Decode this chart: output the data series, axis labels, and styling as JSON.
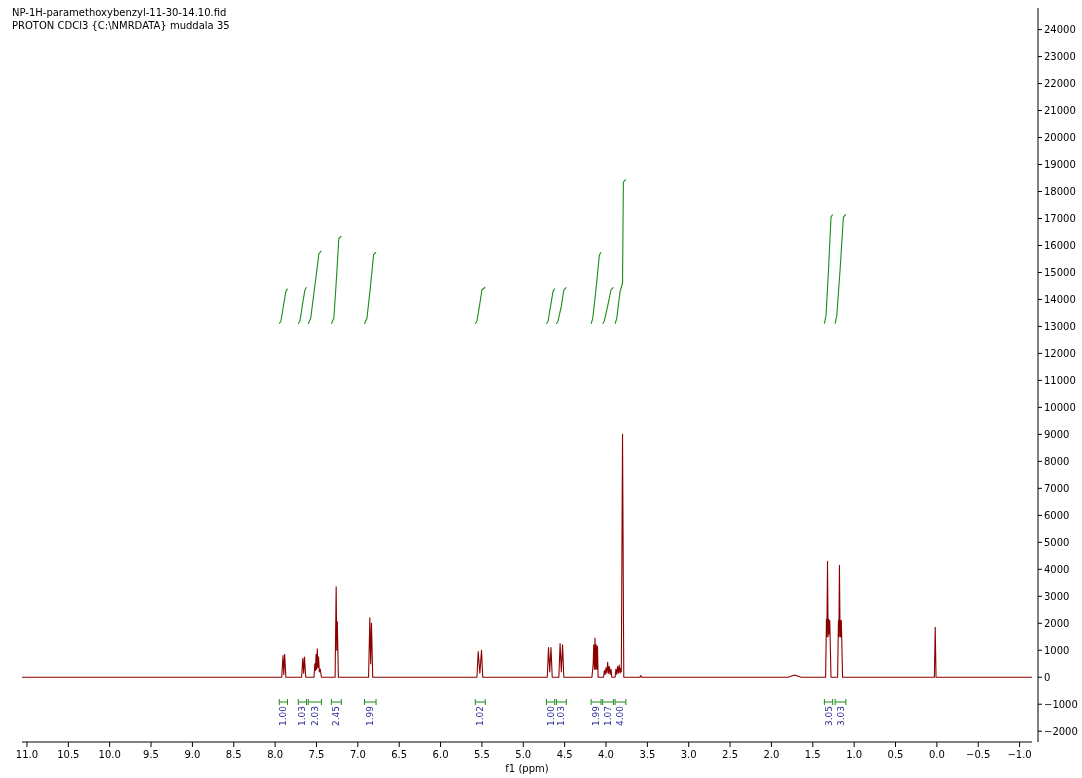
{
  "chart_data": {
    "type": "line",
    "title": "NP-1H-paramethoxybenzyl-11-30-14.10.fid",
    "subtitle": "PROTON CDCl3 {C:\\NMRDATA} muddala 35",
    "xlabel": "f1 (ppm)",
    "xlim": [
      11.06,
      -1.15
    ],
    "ylim": [
      -2400,
      24800
    ],
    "xticks": [
      {
        "value": 11,
        "label": "11.0"
      },
      {
        "value": 10.5,
        "label": "10.5"
      },
      {
        "value": 10,
        "label": "10.0"
      },
      {
        "value": 9.5,
        "label": "9.5"
      },
      {
        "value": 9,
        "label": "9.0"
      },
      {
        "value": 8.5,
        "label": "8.5"
      },
      {
        "value": 8,
        "label": "8.0"
      },
      {
        "value": 7.5,
        "label": "7.5"
      },
      {
        "value": 7,
        "label": "7.0"
      },
      {
        "value": 6.5,
        "label": "6.5"
      },
      {
        "value": 6,
        "label": "6.0"
      },
      {
        "value": 5.5,
        "label": "5.5"
      },
      {
        "value": 5,
        "label": "5.0"
      },
      {
        "value": 4.5,
        "label": "4.5"
      },
      {
        "value": 4,
        "label": "4.0"
      },
      {
        "value": 3.5,
        "label": "3.5"
      },
      {
        "value": 3,
        "label": "3.0"
      },
      {
        "value": 2.5,
        "label": "2.5"
      },
      {
        "value": 2,
        "label": "2.0"
      },
      {
        "value": 1.5,
        "label": "1.5"
      },
      {
        "value": 1,
        "label": "1.0"
      },
      {
        "value": 0.5,
        "label": "0.5"
      },
      {
        "value": 0,
        "label": "0.0"
      },
      {
        "value": -0.5,
        "label": "−0.5"
      },
      {
        "value": -1,
        "label": "−1.0"
      }
    ],
    "yticks": [
      {
        "value": -2000,
        "label": "−2000"
      },
      {
        "value": -1000,
        "label": "−1000"
      },
      0,
      1000,
      2000,
      3000,
      4000,
      5000,
      6000,
      7000,
      8000,
      9000,
      10000,
      11000,
      12000,
      13000,
      14000,
      15000,
      16000,
      17000,
      18000,
      19000,
      20000,
      21000,
      22000,
      23000,
      24000
    ],
    "grid": false,
    "marker": "none",
    "series": [
      {
        "color": "#8b0000",
        "x": [
          11.06,
          7.92,
          7.905,
          7.895,
          7.885,
          7.87,
          7.68,
          7.665,
          7.655,
          7.645,
          7.63,
          7.53,
          7.52,
          7.512,
          7.505,
          7.498,
          7.49,
          7.482,
          7.475,
          7.465,
          7.455,
          7.44,
          7.275,
          7.262,
          7.255,
          7.248,
          7.235,
          6.87,
          6.855,
          6.845,
          6.835,
          6.82,
          5.56,
          5.545,
          5.525,
          5.505,
          5.49,
          4.71,
          4.695,
          4.68,
          4.665,
          4.65,
          4.57,
          4.555,
          4.54,
          4.525,
          4.51,
          4.17,
          4.155,
          4.148,
          4.14,
          4.133,
          4.125,
          4.118,
          4.11,
          4.103,
          4.095,
          4.03,
          4.02,
          4.01,
          4.0,
          3.99,
          3.98,
          3.97,
          3.96,
          3.95,
          3.94,
          3.93,
          3.89,
          3.88,
          3.87,
          3.86,
          3.85,
          3.84,
          3.83,
          3.82,
          3.815,
          3.8,
          3.785,
          3.59,
          3.58,
          3.57,
          1.8,
          1.72,
          1.64,
          1.345,
          1.335,
          1.33,
          1.322,
          1.315,
          1.308,
          1.3,
          1.295,
          1.28,
          1.2,
          1.19,
          1.185,
          1.178,
          1.17,
          1.165,
          1.16,
          1.155,
          1.14,
          0.03,
          0.02,
          0.01,
          -1.15
        ],
        "values": [
          0,
          0,
          800,
          100,
          850,
          0,
          0,
          700,
          150,
          750,
          0,
          0,
          500,
          250,
          850,
          300,
          1050,
          350,
          750,
          200,
          300,
          0,
          0,
          3350,
          1000,
          2050,
          0,
          0,
          2200,
          500,
          2000,
          0,
          0,
          950,
          150,
          1000,
          0,
          0,
          1100,
          200,
          1100,
          0,
          0,
          1250,
          200,
          1200,
          0,
          0,
          500,
          1200,
          300,
          1450,
          300,
          1200,
          300,
          1150,
          0,
          0,
          250,
          100,
          350,
          150,
          550,
          150,
          400,
          100,
          300,
          0,
          0,
          300,
          100,
          400,
          150,
          450,
          150,
          350,
          200,
          9000,
          0,
          0,
          60,
          0,
          0,
          80,
          0,
          0,
          2150,
          1500,
          4300,
          1500,
          2150,
          1600,
          2100,
          0,
          0,
          2100,
          1500,
          4150,
          1500,
          2100,
          1500,
          2100,
          0,
          0,
          1850,
          0,
          0
        ]
      },
      {
        "color": "#1a8c1a",
        "x": [
          7.95,
          7.93,
          7.9,
          7.87,
          7.85,
          7.84,
          7.72,
          7.7,
          7.67,
          7.64,
          7.62,
          7.61,
          7.6,
          7.57,
          7.52,
          7.47,
          7.44,
          7.43,
          7.32,
          7.29,
          7.26,
          7.23,
          7.2,
          7.19,
          6.92,
          6.89,
          6.85,
          6.81,
          6.78,
          6.77,
          5.58,
          5.56,
          5.53,
          5.5,
          5.46,
          5.45,
          4.72,
          4.7,
          4.67,
          4.64,
          4.62,
          4.61,
          4.6,
          4.58,
          4.54,
          4.51,
          4.48,
          4.47,
          4.18,
          4.16,
          4.12,
          4.08,
          4.06,
          4.05,
          4.04,
          4.02,
          3.98,
          3.94,
          3.91,
          3.905,
          3.89,
          3.87,
          3.83,
          3.8,
          3.79,
          3.76,
          3.73,
          1.36,
          1.34,
          1.31,
          1.28,
          1.26,
          1.25,
          1.23,
          1.21,
          1.17,
          1.13,
          1.1
        ],
        "values": [
          13100,
          13200,
          13750,
          14300,
          14400,
          null,
          13100,
          13200,
          13800,
          14350,
          14450,
          null,
          13100,
          13300,
          14500,
          15700,
          15800,
          null,
          13100,
          13300,
          14700,
          16250,
          16350,
          null,
          13100,
          13300,
          14400,
          15650,
          15750,
          null,
          13100,
          13200,
          13750,
          14350,
          14450,
          null,
          13100,
          13200,
          13750,
          14300,
          14400,
          null,
          13100,
          13200,
          13750,
          14350,
          14450,
          null,
          13100,
          13300,
          14400,
          15650,
          15750,
          null,
          13100,
          13200,
          13750,
          14350,
          14450,
          null,
          13100,
          13300,
          14300,
          14600,
          18350,
          18450,
          null,
          13100,
          13400,
          15100,
          17050,
          17150,
          null,
          13100,
          13400,
          15100,
          17050,
          17150
        ]
      }
    ],
    "annotations": [
      "1.00",
      "1.03",
      "2.03",
      "2.45",
      "1.99",
      "1.02",
      "1.00",
      "1.03",
      "1.99",
      "1.07",
      "4.00",
      "3.05",
      "3.03"
    ]
  }
}
